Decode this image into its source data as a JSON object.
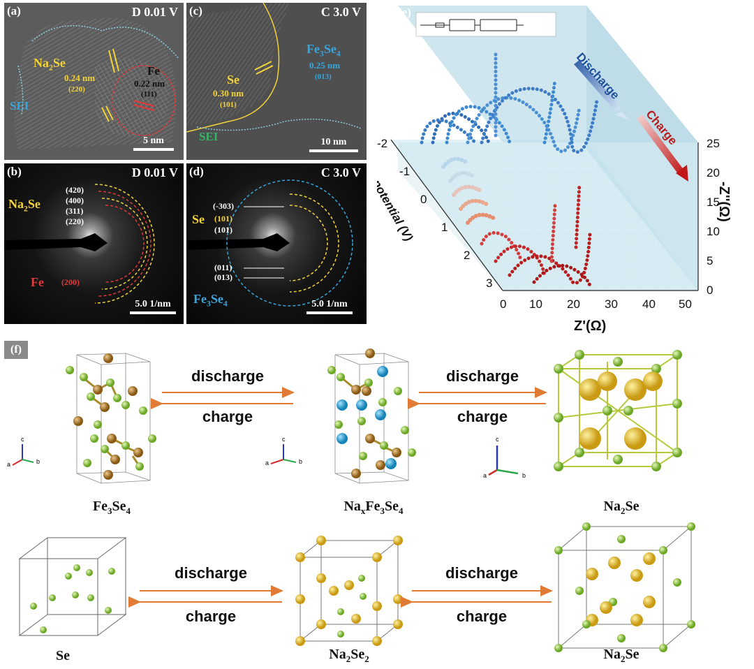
{
  "panel_a": {
    "label": "(a)",
    "header": "D 0.01 V",
    "scale": "5 nm",
    "na2se": "Na2Se",
    "na2se_d": "0.24 nm",
    "na2se_hkl": "(220)",
    "fe": "Fe",
    "fe_d": "0.22 nm",
    "fe_hkl": "(111)",
    "sei": "SEI"
  },
  "panel_b": {
    "label": "(b)",
    "header": "D 0.01 V",
    "scale": "5.0 1/nm",
    "na2se": "Na2Se",
    "rings": [
      "(420)",
      "(400)",
      "(311)",
      "(220)"
    ],
    "fe": "Fe",
    "fe_ring": "(200)"
  },
  "panel_c": {
    "label": "(c)",
    "header": "C 3.0 V",
    "scale": "10 nm",
    "fe3se4": "Fe3Se4",
    "fe3se4_d": "0.25 nm",
    "fe3se4_hkl": "(013)",
    "se": "Se",
    "se_d": "0.30 nm",
    "se_hkl": "(101)",
    "sei": "SEI"
  },
  "panel_d": {
    "label": "(d)",
    "header": "C 3.0 V",
    "scale": "5.0 1/nm",
    "rings_top": [
      "(-303)",
      "(101)",
      "(101)"
    ],
    "se": "Se",
    "rings_bottom": [
      "(011)",
      "(013)"
    ],
    "fe3se4": "Fe3Se4"
  },
  "panel_e": {
    "label": "(e)",
    "discharge": "Discharge",
    "charge": "Charge",
    "potential_label": "potential (V)",
    "zim_label": "-Z''(Ω)",
    "zre_label": "Z'(Ω)",
    "potential_ticks": [
      "-2",
      "-1",
      "0",
      "1",
      "2",
      "3"
    ],
    "zim_ticks": [
      "0",
      "5",
      "10",
      "15",
      "20",
      "25"
    ],
    "zre_ticks": [
      "0",
      "10",
      "20",
      "30",
      "40",
      "50"
    ]
  },
  "panel_f": {
    "label": "(f)",
    "row1": {
      "names": [
        "Fe3Se4",
        "NaxFe3Se4",
        "Na2Se"
      ],
      "arrows": [
        {
          "top": "discharge",
          "bottom": "charge"
        },
        {
          "top": "discharge",
          "bottom": "charge"
        }
      ]
    },
    "row2": {
      "names": [
        "Se",
        "Na2Se2",
        "Na2Se"
      ],
      "arrows": [
        {
          "top": "discharge",
          "bottom": "charge"
        },
        {
          "top": "discharge",
          "bottom": "charge"
        }
      ]
    },
    "axes": [
      "a",
      "b",
      "c"
    ]
  },
  "colors": {
    "na": "#d4b43a",
    "se": "#8cc63f",
    "fe": "#a0742a",
    "na_blue": "#2aa7d8",
    "arrow": "#e07a35"
  }
}
